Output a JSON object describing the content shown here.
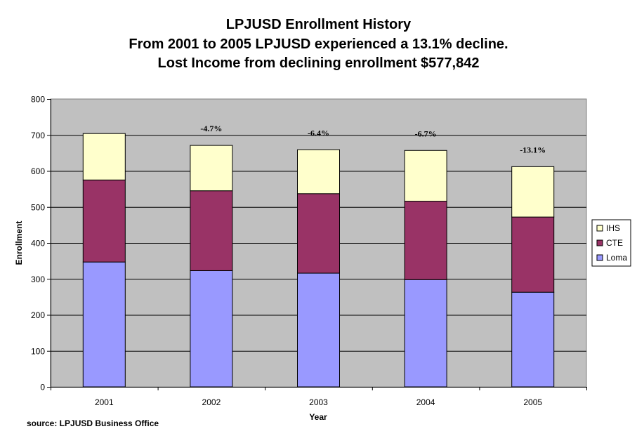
{
  "titles": [
    "LPJUSD Enrollment History",
    "From 2001 to 2005 LPJUSD experienced a 13.1% decline.",
    "Lost Income from declining enrollment $577,842"
  ],
  "source": "source: LPJUSD Business Office",
  "chart_data": {
    "type": "bar",
    "stacked": true,
    "categories": [
      "2001",
      "2002",
      "2003",
      "2004",
      "2005"
    ],
    "series": [
      {
        "name": "Loma",
        "color": "#9999ff",
        "values": [
          347,
          323,
          316,
          298,
          263
        ]
      },
      {
        "name": "CTE",
        "color": "#993366",
        "values": [
          228,
          222,
          221,
          218,
          209
        ]
      },
      {
        "name": "IHS",
        "color": "#ffffcc",
        "values": [
          129,
          126,
          122,
          141,
          140
        ]
      }
    ],
    "annotations": [
      "",
      "-4.7%",
      "-6.4%",
      "-6.7%",
      "-13.1%"
    ],
    "xlabel": "Year",
    "ylabel": "Enrollment",
    "ylim": [
      0,
      800
    ],
    "yticks": [
      0,
      100,
      200,
      300,
      400,
      500,
      600,
      700,
      800
    ],
    "grid": true,
    "legend_position": "right",
    "plot_background": "#c0c0c0"
  }
}
